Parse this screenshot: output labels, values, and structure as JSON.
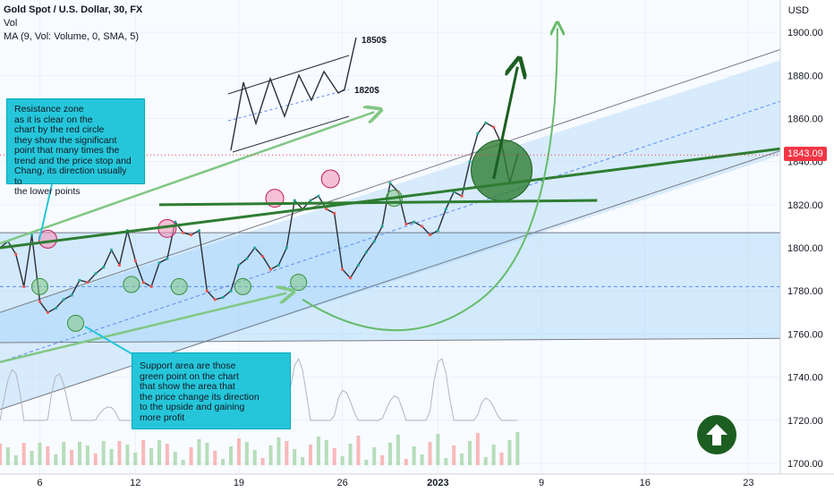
{
  "legend": {
    "title": "Gold Spot / U.S. Dollar, 30, FX",
    "vol_label": "Vol",
    "ma_label": "MA (9, Vol: Volume, 0, SMA, 5)"
  },
  "currency_label": "USD",
  "last_price": {
    "label": "1843.09",
    "value": 1843.09,
    "color": "#f23645"
  },
  "annotations": {
    "resistance_note": "Resistance zone\nas it is clear on the\nchart by the red circle\n they show the significant\n point that many times the\n trend and the price stop and\n Chang, its direction usually to\nthe lower points",
    "support_note": "Support area are those\ngreen point on the chart\n that show the area that\nthe price change its direction\nto the upside and gaining\nmore profit",
    "target_high": "1850$",
    "target_low": "1820$"
  },
  "chart_data": {
    "type": "line",
    "title": "Gold Spot / U.S. Dollar, 30, FX",
    "ylim": [
      1695,
      1915
    ],
    "y_ticks": [
      1700,
      1720,
      1740,
      1760,
      1780,
      1800,
      1820,
      1840,
      1860,
      1880,
      1900
    ],
    "y_tick_labels": [
      "1700.00",
      "1720.00",
      "1740.00",
      "1760.00",
      "1780.00",
      "1800.00",
      "1820.00",
      "1840.00",
      "1860.00",
      "1880.00",
      "1900.00"
    ],
    "x_tick_labels": [
      "6",
      "12",
      "19",
      "26",
      "2023",
      "9",
      "16",
      "23"
    ],
    "x_tick_positions": [
      5,
      17,
      30,
      43,
      55,
      68,
      81,
      94
    ],
    "xlim": [
      0,
      98
    ],
    "grid": true,
    "series": [
      {
        "x": [
          0,
          1,
          2,
          3,
          4,
          5,
          6,
          7,
          8,
          9,
          10,
          11,
          12,
          13,
          14,
          15,
          16,
          17,
          18,
          19,
          20,
          21,
          22,
          23,
          24,
          25,
          26,
          27,
          28,
          29,
          30,
          31,
          32,
          33,
          34,
          35,
          36,
          37,
          38,
          39,
          40,
          41,
          42,
          43,
          44,
          45,
          46,
          47,
          48,
          49,
          50,
          51,
          52,
          53,
          54,
          55,
          56,
          57,
          58,
          59,
          60,
          61,
          62,
          63,
          64,
          65
        ],
        "values": [
          1800,
          1803,
          1797,
          1782,
          1806,
          1775,
          1770,
          1772,
          1776,
          1778,
          1785,
          1784,
          1788,
          1791,
          1799,
          1792,
          1808,
          1794,
          1784,
          1782,
          1793,
          1795,
          1812,
          1807,
          1806,
          1808,
          1780,
          1776,
          1777,
          1780,
          1792,
          1795,
          1800,
          1796,
          1790,
          1792,
          1800,
          1822,
          1818,
          1822,
          1824,
          1818,
          1816,
          1790,
          1786,
          1792,
          1798,
          1803,
          1810,
          1830,
          1826,
          1811,
          1812,
          1810,
          1806,
          1808,
          1818,
          1826,
          1824,
          1840,
          1853,
          1858,
          1856,
          1848,
          1830,
          1843
        ]
      }
    ]
  }
}
